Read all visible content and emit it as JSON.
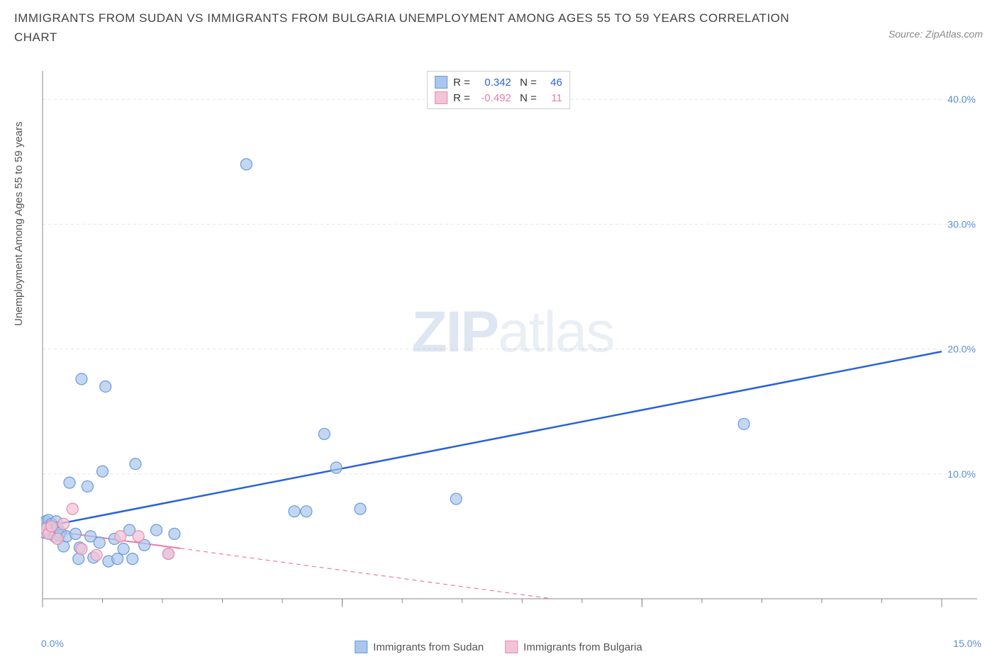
{
  "title": "IMMIGRANTS FROM SUDAN VS IMMIGRANTS FROM BULGARIA UNEMPLOYMENT AMONG AGES 55 TO 59 YEARS CORRELATION CHART",
  "source": "Source: ZipAtlas.com",
  "y_axis_label": "Unemployment Among Ages 55 to 59 years",
  "watermark_a": "ZIP",
  "watermark_b": "atlas",
  "chart": {
    "type": "scatter",
    "background_color": "#ffffff",
    "grid_color": "#e5e5e5",
    "grid_dash": "4,4",
    "axis_line_color": "#888888",
    "x_domain": [
      0,
      15
    ],
    "y_domain": [
      0,
      42
    ],
    "y_ticks": [
      10,
      20,
      30,
      40
    ],
    "y_tick_labels": [
      "10.0%",
      "20.0%",
      "30.0%",
      "40.0%"
    ],
    "x_tick_left_label": "0.0%",
    "x_tick_right_label": "15.0%",
    "x_minor_ticks": [
      0,
      1,
      2,
      3,
      4,
      5,
      6,
      7,
      8,
      9,
      10,
      11,
      12,
      13,
      14,
      15
    ],
    "x_major_ticks": [
      0,
      5,
      10,
      15
    ],
    "series": [
      {
        "name": "Immigrants from Sudan",
        "marker_fill": "#a9c6ec",
        "marker_stroke": "#6b9bd6",
        "marker_opacity": 0.7,
        "marker_radius": 8,
        "line_color": "#2962d9",
        "line_width": 2.5,
        "line_dash": "none",
        "r_value": "0.342",
        "n_value": "46",
        "regression": {
          "x1": 0.05,
          "y1": 5.8,
          "x2": 15.0,
          "y2": 19.8
        },
        "points": [
          [
            0.02,
            6.0
          ],
          [
            0.03,
            5.3
          ],
          [
            0.05,
            6.2
          ],
          [
            0.06,
            5.6
          ],
          [
            0.08,
            5.8
          ],
          [
            0.1,
            6.3
          ],
          [
            0.12,
            5.2
          ],
          [
            0.15,
            6.0
          ],
          [
            0.18,
            5.5
          ],
          [
            0.2,
            5.0
          ],
          [
            0.23,
            6.2
          ],
          [
            0.25,
            5.7
          ],
          [
            0.28,
            5.1
          ],
          [
            0.3,
            5.3
          ],
          [
            0.35,
            4.2
          ],
          [
            0.4,
            5.0
          ],
          [
            0.45,
            9.3
          ],
          [
            0.55,
            5.2
          ],
          [
            0.6,
            3.2
          ],
          [
            0.62,
            4.1
          ],
          [
            0.65,
            17.6
          ],
          [
            0.75,
            9.0
          ],
          [
            0.8,
            5.0
          ],
          [
            0.85,
            3.3
          ],
          [
            0.95,
            4.5
          ],
          [
            1.0,
            10.2
          ],
          [
            1.05,
            17.0
          ],
          [
            1.1,
            3.0
          ],
          [
            1.2,
            4.8
          ],
          [
            1.25,
            3.2
          ],
          [
            1.35,
            4.0
          ],
          [
            1.45,
            5.5
          ],
          [
            1.5,
            3.2
          ],
          [
            1.55,
            10.8
          ],
          [
            1.7,
            4.3
          ],
          [
            1.9,
            5.5
          ],
          [
            2.1,
            3.6
          ],
          [
            2.2,
            5.2
          ],
          [
            3.4,
            34.8
          ],
          [
            4.2,
            7.0
          ],
          [
            4.4,
            7.0
          ],
          [
            4.7,
            13.2
          ],
          [
            4.9,
            10.5
          ],
          [
            5.3,
            7.2
          ],
          [
            6.9,
            8.0
          ],
          [
            11.7,
            14.0
          ]
        ]
      },
      {
        "name": "Immigrants from Bulgaria",
        "marker_fill": "#f3c4d6",
        "marker_stroke": "#e38bb0",
        "marker_opacity": 0.75,
        "marker_radius": 8,
        "line_color": "#e87ca8",
        "line_width": 2,
        "line_dash": "6,5",
        "r_value": "-0.492",
        "n_value": "11",
        "regression": {
          "x1": 0.05,
          "y1": 5.5,
          "x2": 8.5,
          "y2": 0.0
        },
        "regression_solid_end_x": 2.3,
        "points": [
          [
            0.05,
            5.6
          ],
          [
            0.1,
            5.2
          ],
          [
            0.15,
            5.8
          ],
          [
            0.25,
            4.8
          ],
          [
            0.35,
            6.0
          ],
          [
            0.5,
            7.2
          ],
          [
            0.65,
            4.0
          ],
          [
            0.9,
            3.5
          ],
          [
            1.3,
            5.0
          ],
          [
            1.6,
            5.0
          ],
          [
            2.1,
            3.6
          ]
        ]
      }
    ],
    "legend_bottom": [
      {
        "label": "Immigrants from Sudan",
        "fill": "#a9c6ec",
        "stroke": "#6b9bd6"
      },
      {
        "label": "Immigrants from Bulgaria",
        "fill": "#f3c4d6",
        "stroke": "#e38bb0"
      }
    ]
  }
}
